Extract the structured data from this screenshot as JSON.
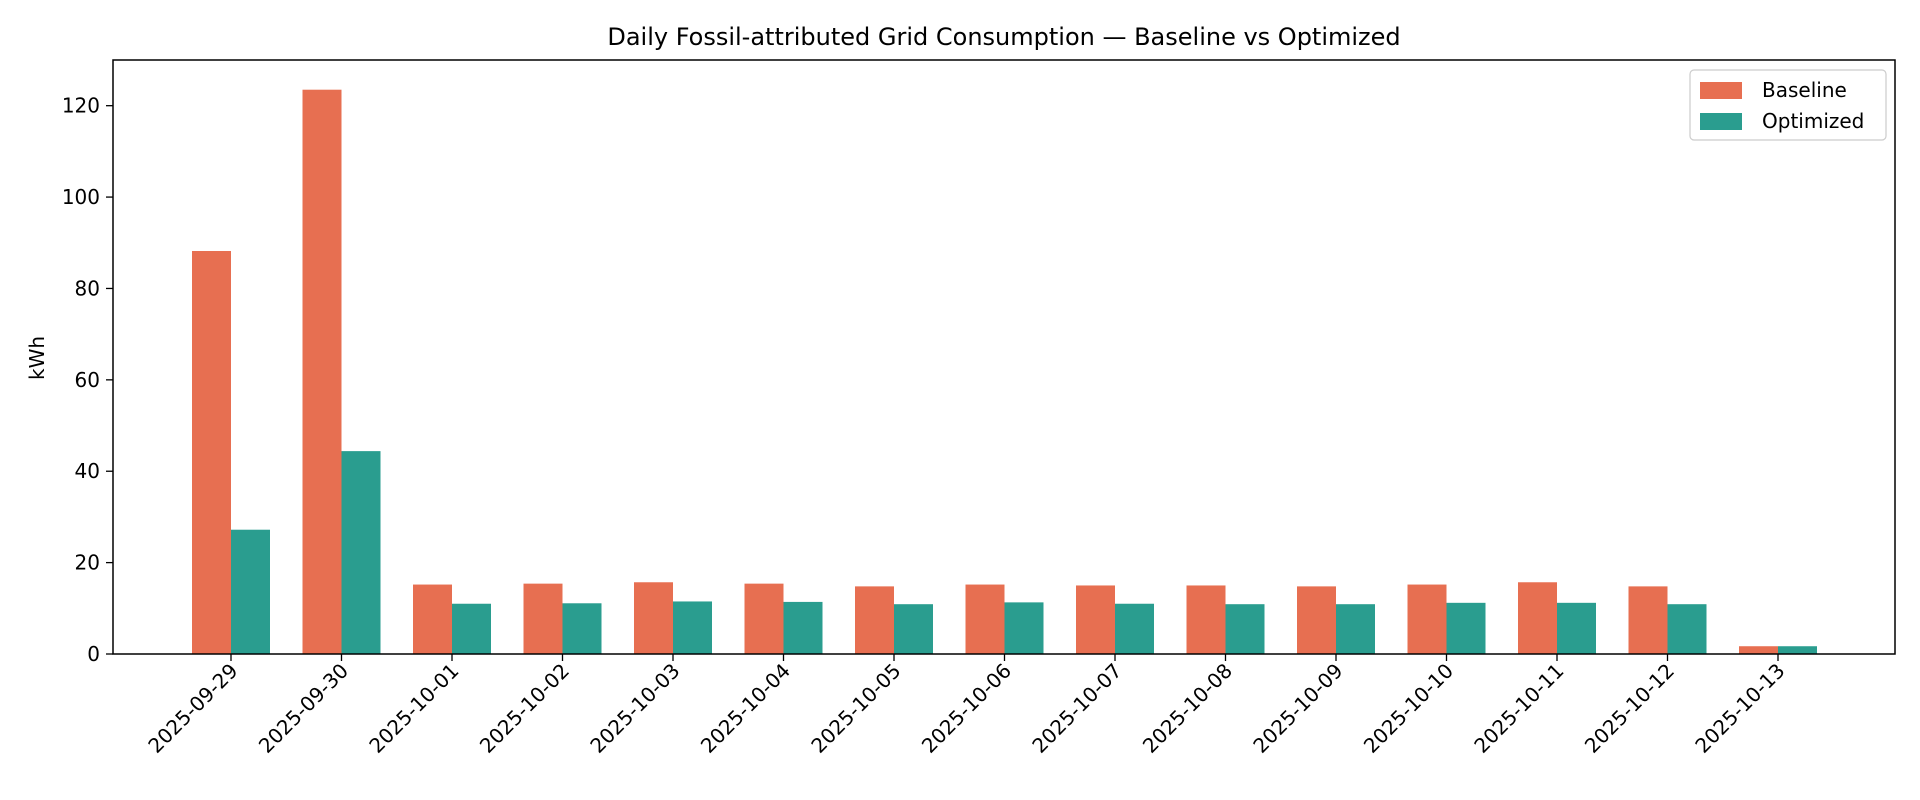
{
  "chart_data": {
    "type": "bar",
    "title": "Daily Fossil-attributed Grid Consumption — Baseline vs Optimized",
    "xlabel": "",
    "ylabel": "kWh",
    "ylim": [
      0,
      130
    ],
    "yticks": [
      0,
      20,
      40,
      60,
      80,
      100,
      120
    ],
    "categories": [
      "2025-09-29",
      "2025-09-30",
      "2025-10-01",
      "2025-10-02",
      "2025-10-03",
      "2025-10-04",
      "2025-10-05",
      "2025-10-06",
      "2025-10-07",
      "2025-10-08",
      "2025-10-09",
      "2025-10-10",
      "2025-10-11",
      "2025-10-12",
      "2025-10-13"
    ],
    "series": [
      {
        "name": "Baseline",
        "color": "#e76f51",
        "values": [
          88.2,
          123.5,
          15.2,
          15.4,
          15.7,
          15.4,
          14.8,
          15.2,
          15.0,
          15.0,
          14.8,
          15.2,
          15.7,
          14.8,
          1.7
        ]
      },
      {
        "name": "Optimized",
        "color": "#2a9d8f",
        "values": [
          27.2,
          44.4,
          11.0,
          11.1,
          11.5,
          11.4,
          10.9,
          11.3,
          11.0,
          10.9,
          10.9,
          11.2,
          11.2,
          10.9,
          1.7
        ]
      }
    ],
    "legend_position": "top-right",
    "grid": false
  }
}
